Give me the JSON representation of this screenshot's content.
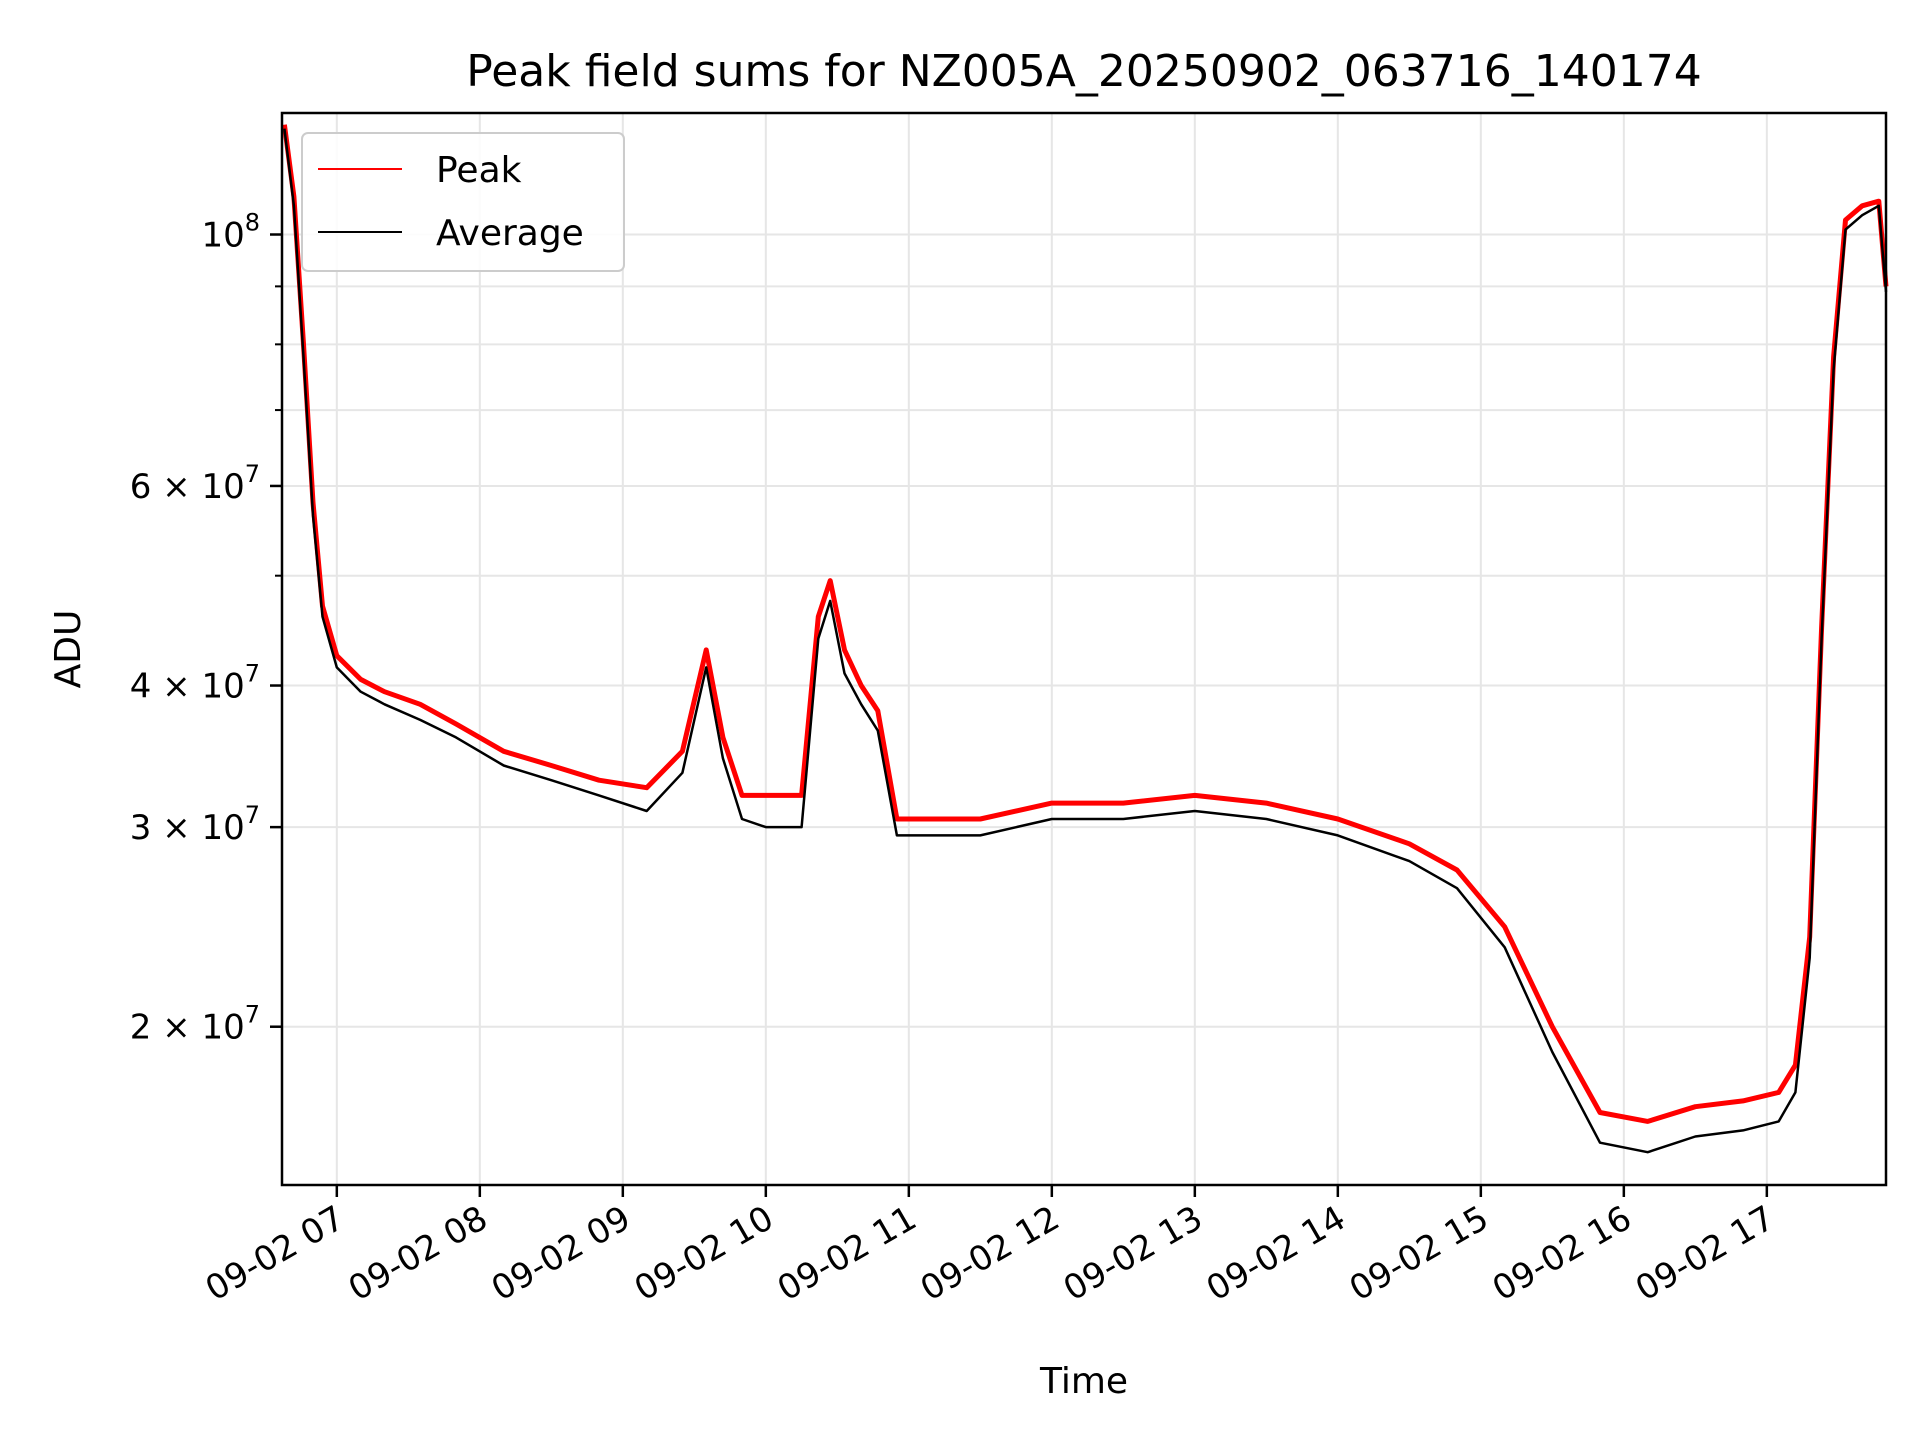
{
  "chart_data": {
    "type": "line",
    "title": "Peak field sums for NZ005A_20250902_063716_140174",
    "xlabel": "Time",
    "ylabel": "ADU",
    "y_scale": "log",
    "grid": true,
    "legend_position": "top-left",
    "xlim": [
      "2025-09-02 06:37",
      "2025-09-02 17:50"
    ],
    "ylim": [
      14500000,
      128000000
    ],
    "x_ticks": [
      {
        "t": "2025-09-02 07:00",
        "label": "09-02 07"
      },
      {
        "t": "2025-09-02 08:00",
        "label": "09-02 08"
      },
      {
        "t": "2025-09-02 09:00",
        "label": "09-02 09"
      },
      {
        "t": "2025-09-02 10:00",
        "label": "09-02 10"
      },
      {
        "t": "2025-09-02 11:00",
        "label": "09-02 11"
      },
      {
        "t": "2025-09-02 12:00",
        "label": "09-02 12"
      },
      {
        "t": "2025-09-02 13:00",
        "label": "09-02 13"
      },
      {
        "t": "2025-09-02 14:00",
        "label": "09-02 14"
      },
      {
        "t": "2025-09-02 15:00",
        "label": "09-02 15"
      },
      {
        "t": "2025-09-02 16:00",
        "label": "09-02 16"
      },
      {
        "t": "2025-09-02 17:00",
        "label": "09-02 17"
      }
    ],
    "y_major_ticks": [
      {
        "value": 20000000,
        "base": "2",
        "exp": "7"
      },
      {
        "value": 30000000,
        "base": "3",
        "exp": "7"
      },
      {
        "value": 40000000,
        "base": "4",
        "exp": "7"
      },
      {
        "value": 60000000,
        "base": "6",
        "exp": "7"
      },
      {
        "value": 100000000,
        "base": "10",
        "exp": "8"
      }
    ],
    "y_minor_ticks": [
      50000000,
      70000000,
      80000000,
      90000000
    ],
    "series": [
      {
        "name": "Peak",
        "color": "#ff0000",
        "x": [
          "2025-09-02 06:38",
          "2025-09-02 06:42",
          "2025-09-02 06:46",
          "2025-09-02 06:50",
          "2025-09-02 06:54",
          "2025-09-02 07:00",
          "2025-09-02 07:10",
          "2025-09-02 07:20",
          "2025-09-02 07:35",
          "2025-09-02 07:50",
          "2025-09-02 08:10",
          "2025-09-02 08:30",
          "2025-09-02 08:50",
          "2025-09-02 09:10",
          "2025-09-02 09:25",
          "2025-09-02 09:35",
          "2025-09-02 09:42",
          "2025-09-02 09:50",
          "2025-09-02 10:00",
          "2025-09-02 10:15",
          "2025-09-02 10:22",
          "2025-09-02 10:27",
          "2025-09-02 10:33",
          "2025-09-02 10:40",
          "2025-09-02 10:47",
          "2025-09-02 10:55",
          "2025-09-02 11:00",
          "2025-09-02 11:30",
          "2025-09-02 12:00",
          "2025-09-02 12:30",
          "2025-09-02 13:00",
          "2025-09-02 13:30",
          "2025-09-02 14:00",
          "2025-09-02 14:30",
          "2025-09-02 14:50",
          "2025-09-02 15:10",
          "2025-09-02 15:30",
          "2025-09-02 15:50",
          "2025-09-02 16:10",
          "2025-09-02 16:30",
          "2025-09-02 16:50",
          "2025-09-02 17:05",
          "2025-09-02 17:12",
          "2025-09-02 17:18",
          "2025-09-02 17:23",
          "2025-09-02 17:28",
          "2025-09-02 17:33",
          "2025-09-02 17:40",
          "2025-09-02 17:47",
          "2025-09-02 17:50"
        ],
        "values": [
          125000000,
          108000000,
          80000000,
          58000000,
          47000000,
          42500000,
          40500000,
          39500000,
          38500000,
          37000000,
          35000000,
          34000000,
          33000000,
          32500000,
          35000000,
          43000000,
          36000000,
          32000000,
          32000000,
          32000000,
          46000000,
          49500000,
          43000000,
          40000000,
          38000000,
          30500000,
          30500000,
          30500000,
          31500000,
          31500000,
          32000000,
          31500000,
          30500000,
          29000000,
          27500000,
          24500000,
          20000000,
          16800000,
          16500000,
          17000000,
          17200000,
          17500000,
          18500000,
          24000000,
          45000000,
          78000000,
          103000000,
          106000000,
          107000000,
          90000000
        ]
      },
      {
        "name": "Average",
        "color": "#000000",
        "x": [
          "2025-09-02 06:38",
          "2025-09-02 06:42",
          "2025-09-02 06:46",
          "2025-09-02 06:50",
          "2025-09-02 06:54",
          "2025-09-02 07:00",
          "2025-09-02 07:10",
          "2025-09-02 07:20",
          "2025-09-02 07:35",
          "2025-09-02 07:50",
          "2025-09-02 08:10",
          "2025-09-02 08:30",
          "2025-09-02 08:50",
          "2025-09-02 09:10",
          "2025-09-02 09:25",
          "2025-09-02 09:35",
          "2025-09-02 09:42",
          "2025-09-02 09:50",
          "2025-09-02 10:00",
          "2025-09-02 10:15",
          "2025-09-02 10:22",
          "2025-09-02 10:27",
          "2025-09-02 10:33",
          "2025-09-02 10:40",
          "2025-09-02 10:47",
          "2025-09-02 10:55",
          "2025-09-02 11:00",
          "2025-09-02 11:30",
          "2025-09-02 12:00",
          "2025-09-02 12:30",
          "2025-09-02 13:00",
          "2025-09-02 13:30",
          "2025-09-02 14:00",
          "2025-09-02 14:30",
          "2025-09-02 14:50",
          "2025-09-02 15:10",
          "2025-09-02 15:30",
          "2025-09-02 15:50",
          "2025-09-02 16:10",
          "2025-09-02 16:30",
          "2025-09-02 16:50",
          "2025-09-02 17:05",
          "2025-09-02 17:12",
          "2025-09-02 17:18",
          "2025-09-02 17:23",
          "2025-09-02 17:28",
          "2025-09-02 17:33",
          "2025-09-02 17:40",
          "2025-09-02 17:47",
          "2025-09-02 17:50"
        ],
        "values": [
          124000000,
          106000000,
          78000000,
          56500000,
          46000000,
          41500000,
          39500000,
          38500000,
          37300000,
          36000000,
          34000000,
          33000000,
          32000000,
          31000000,
          33500000,
          41500000,
          34500000,
          30500000,
          30000000,
          30000000,
          44000000,
          47500000,
          41000000,
          38500000,
          36500000,
          29500000,
          29500000,
          29500000,
          30500000,
          30500000,
          31000000,
          30500000,
          29500000,
          28000000,
          26500000,
          23500000,
          19000000,
          15800000,
          15500000,
          16000000,
          16200000,
          16500000,
          17500000,
          23000000,
          44000000,
          76000000,
          101000000,
          104000000,
          106000000,
          89000000
        ]
      }
    ]
  }
}
